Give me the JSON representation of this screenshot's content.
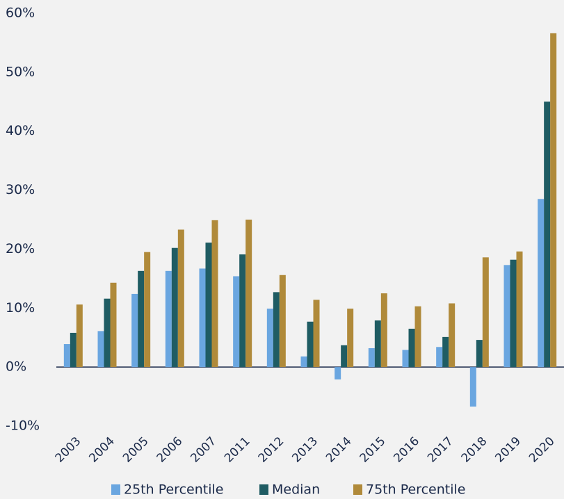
{
  "chart_data": {
    "type": "bar",
    "categories": [
      "2003",
      "2004",
      "2005",
      "2006",
      "2007",
      "2011",
      "2012",
      "2013",
      "2014",
      "2015",
      "2016",
      "2017",
      "2018",
      "2019",
      "2020"
    ],
    "series": [
      {
        "name": "25th Percentile",
        "color": "#6aa6e0",
        "values": [
          3.9,
          6.1,
          12.4,
          16.3,
          16.7,
          15.4,
          9.9,
          1.8,
          -2.1,
          3.2,
          2.9,
          3.4,
          -6.7,
          17.3,
          28.5
        ]
      },
      {
        "name": "Median",
        "color": "#1f5c63",
        "values": [
          5.8,
          11.6,
          16.3,
          20.2,
          21.1,
          19.1,
          12.7,
          7.7,
          3.7,
          7.9,
          6.5,
          5.1,
          4.6,
          18.2,
          45.0
        ]
      },
      {
        "name": "75th Percentile",
        "color": "#b08a3a",
        "values": [
          10.6,
          14.3,
          19.5,
          23.3,
          24.9,
          25.0,
          15.6,
          11.4,
          9.9,
          12.5,
          10.3,
          10.8,
          18.6,
          19.6,
          56.6
        ]
      }
    ],
    "ylim": [
      -10,
      60
    ],
    "yticks": [
      {
        "value": -10,
        "label": "-10%"
      },
      {
        "value": 0,
        "label": "0%"
      },
      {
        "value": 10,
        "label": "10%"
      },
      {
        "value": 20,
        "label": "20%"
      },
      {
        "value": 30,
        "label": "30%"
      },
      {
        "value": 40,
        "label": "40%"
      },
      {
        "value": 50,
        "label": "50%"
      },
      {
        "value": 60,
        "label": "60%"
      }
    ],
    "grid": false
  }
}
